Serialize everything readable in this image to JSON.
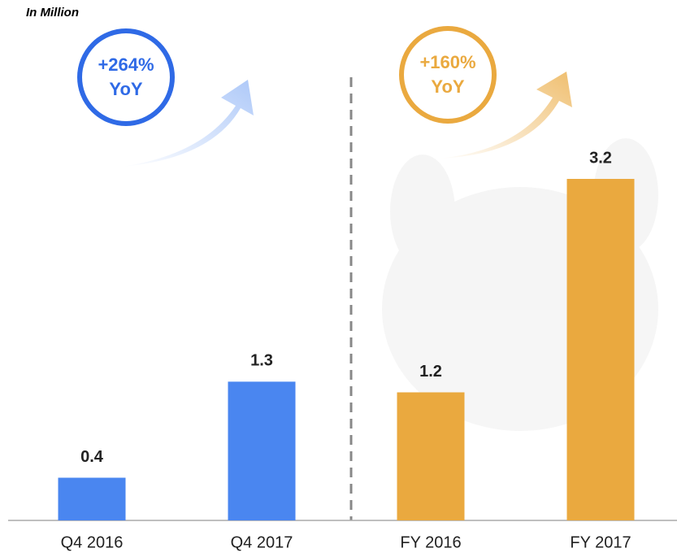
{
  "chart_data": {
    "type": "bar",
    "subtitle": "In Million",
    "categories": [
      "Q4 2016",
      "Q4 2017",
      "FY 2016",
      "FY 2017"
    ],
    "values": [
      0.4,
      1.3,
      1.2,
      3.2
    ],
    "colors": [
      "#4a86f0",
      "#4a86f0",
      "#eaa93f",
      "#eaa93f"
    ],
    "annotations": [
      {
        "lines": [
          "+264%",
          "YoY"
        ],
        "color": "#2f6ae6"
      },
      {
        "lines": [
          "+160%",
          "YoY"
        ],
        "color": "#eaa93f"
      }
    ]
  }
}
